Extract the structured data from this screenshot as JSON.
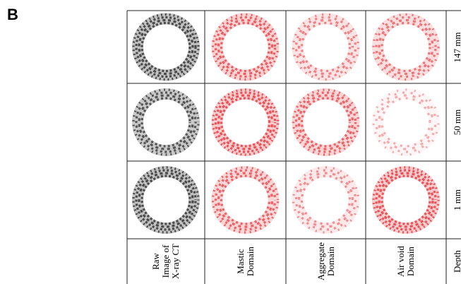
{
  "panel_label": "B",
  "table": {
    "header": [
      "Raw Image of X-ray CT",
      "Mastic Domain",
      "Aggregate Domain",
      "Air void Domain",
      "Depth"
    ],
    "rows": [
      [
        "147 mm"
      ],
      [
        "50 mm"
      ],
      [
        "1 mm"
      ]
    ]
  }
}
